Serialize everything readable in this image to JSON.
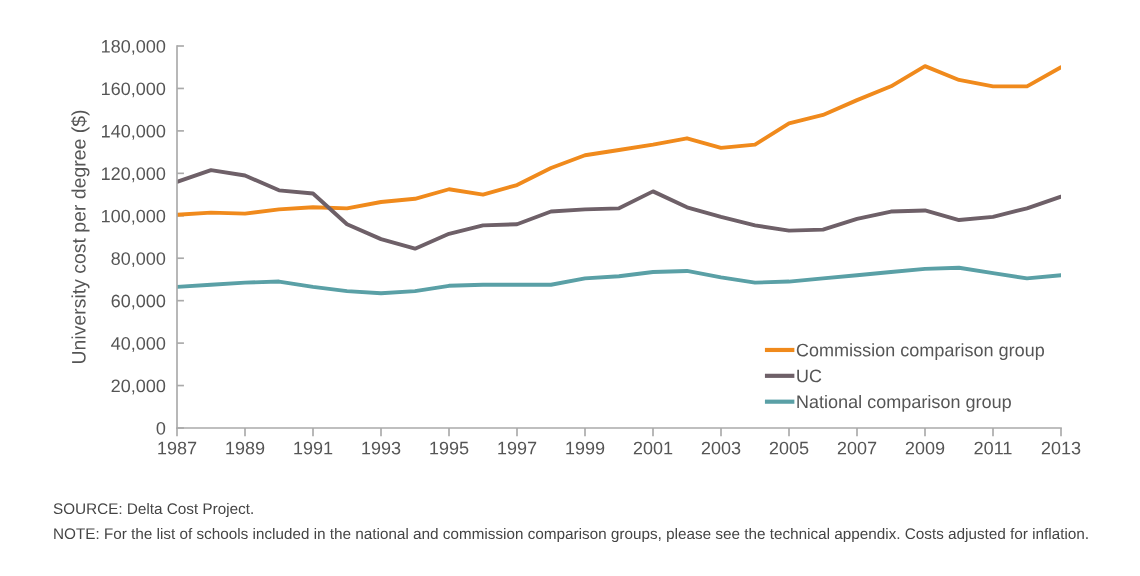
{
  "chart_data": {
    "type": "line",
    "ylabel": "University cost per degree ($)",
    "x": [
      1987,
      1988,
      1989,
      1990,
      1991,
      1992,
      1993,
      1994,
      1995,
      1996,
      1997,
      1998,
      1999,
      2000,
      2001,
      2002,
      2003,
      2004,
      2005,
      2006,
      2007,
      2008,
      2009,
      2010,
      2011,
      2012,
      2013
    ],
    "series": [
      {
        "name": "Commission comparison group",
        "color": "#f08a1c",
        "values": [
          100500,
          101500,
          101000,
          103000,
          104000,
          103500,
          106500,
          108000,
          112500,
          110000,
          114500,
          122500,
          128500,
          131000,
          133500,
          136500,
          132000,
          133500,
          143500,
          147500,
          154500,
          161000,
          170500,
          164000,
          161000,
          161000,
          170000
        ]
      },
      {
        "name": "UC",
        "color": "#6e6068",
        "values": [
          116000,
          121500,
          119000,
          112000,
          110500,
          96000,
          89000,
          84500,
          91500,
          95500,
          96000,
          102000,
          103000,
          103500,
          111500,
          104000,
          99500,
          95500,
          93000,
          93500,
          98500,
          102000,
          102500,
          98000,
          99500,
          103500,
          109000
        ]
      },
      {
        "name": "National comparison group",
        "color": "#5aa0a6",
        "values": [
          66500,
          67500,
          68500,
          69000,
          66500,
          64500,
          63500,
          64500,
          67000,
          67500,
          67500,
          67500,
          70500,
          71500,
          73500,
          74000,
          71000,
          68500,
          69000,
          70500,
          72000,
          73500,
          75000,
          75500,
          73000,
          70500,
          72000
        ]
      }
    ],
    "xlim": [
      1987,
      2013
    ],
    "xticks": [
      1987,
      1989,
      1991,
      1993,
      1995,
      1997,
      1999,
      2001,
      2003,
      2005,
      2007,
      2009,
      2011,
      2013
    ],
    "ylim": [
      0,
      180000
    ],
    "yticks": [
      {
        "value": 0,
        "label": "0"
      },
      {
        "value": 20000,
        "label": "20,000"
      },
      {
        "value": 40000,
        "label": "40,000"
      },
      {
        "value": 60000,
        "label": "60,000"
      },
      {
        "value": 80000,
        "label": "80,000"
      },
      {
        "value": 100000,
        "label": "100,000"
      },
      {
        "value": 120000,
        "label": "120,000"
      },
      {
        "value": 140000,
        "label": "140,000"
      },
      {
        "value": 160000,
        "label": "160,000"
      },
      {
        "value": 180000,
        "label": "180,000"
      }
    ],
    "grid": false,
    "legend": "bottom right",
    "marker": "none",
    "line_style": "solid",
    "annotations": [
      "SOURCE: Delta Cost Project.",
      "NOTE: For the list of schools included in the national and commission comparison groups, please see the technical appendix. Costs adjusted for inflation."
    ]
  }
}
